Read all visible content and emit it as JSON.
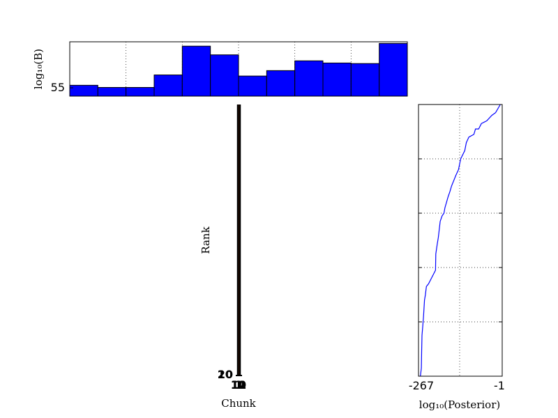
{
  "chart_data": [
    {
      "type": "bar",
      "ylabel": "log₁₀(B)",
      "ytick_labels": [
        "55"
      ],
      "values": [
        0.2,
        0.16,
        0.16,
        0.39,
        0.92,
        0.76,
        0.37,
        0.47,
        0.65,
        0.61,
        0.6,
        0.97
      ],
      "grid": true,
      "bar_color": "#0000ff"
    },
    {
      "type": "line",
      "xlabel": "Chunk",
      "ylabel": "Rank",
      "xtick_labels": [
        "1",
        "10",
        "11",
        "12"
      ],
      "ytick_labels": [
        "10",
        "20"
      ],
      "line_color": "#000000"
    },
    {
      "type": "line",
      "xlabel": "log₁₀(Posterior)",
      "xtick_labels": [
        "-267",
        "-1"
      ],
      "xlim": [
        -267,
        -1
      ],
      "grid": true,
      "line_color": "#0000ff",
      "series": [
        {
          "x": [
            -261,
            -258,
            -257,
            -256,
            -253,
            -251,
            -248,
            -245,
            -242,
            -235,
            -213,
            -212,
            -207,
            -204,
            -202,
            -198,
            -192,
            -186,
            -183,
            -173,
            -167,
            -162,
            -148,
            -140,
            -133,
            -120,
            -115,
            -107,
            -91,
            -86,
            -76,
            -67,
            -50,
            -34,
            -22,
            -7
          ],
          "y": [
            0.0,
            0.03,
            0.09,
            0.15,
            0.19,
            0.22,
            0.28,
            0.3,
            0.33,
            0.34,
            0.39,
            0.45,
            0.49,
            0.51,
            0.53,
            0.57,
            0.59,
            0.6,
            0.62,
            0.66,
            0.68,
            0.7,
            0.74,
            0.76,
            0.8,
            0.83,
            0.86,
            0.88,
            0.89,
            0.91,
            0.91,
            0.93,
            0.94,
            0.96,
            0.97,
            1.0
          ]
        }
      ]
    }
  ]
}
